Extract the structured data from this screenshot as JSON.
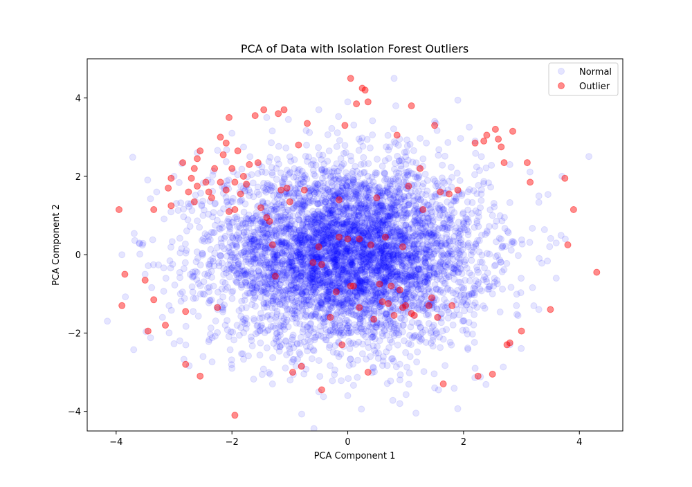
{
  "chart_data": {
    "type": "scatter",
    "title": "PCA of Data with Isolation Forest Outliers",
    "xlabel": "PCA Component 1",
    "ylabel": "PCA Component 2",
    "xlim": [
      -4.5,
      4.75
    ],
    "ylim": [
      -4.5,
      5.0
    ],
    "xticks": [
      -4,
      -2,
      0,
      2,
      4
    ],
    "yticks": [
      -4,
      -2,
      0,
      2,
      4
    ],
    "xtick_labels": [
      "−4",
      "−2",
      "0",
      "2",
      "4"
    ],
    "ytick_labels": [
      "−4",
      "−2",
      "0",
      "2",
      "4"
    ],
    "grid": false,
    "legend_position": "top-right",
    "series": [
      {
        "name": "Normal",
        "color": "#0000ff",
        "alpha": 0.1,
        "distribution": "dense 2D cloud centered near (0, 0), spread roughly x in [-4, 4], y in [-4, 4.5]",
        "points": [
          [
            -3.6,
            0.3
          ],
          [
            -3.5,
            -0.5
          ],
          [
            -3.3,
            1.6
          ],
          [
            -3.2,
            -1.6
          ],
          [
            -3.0,
            2.0
          ],
          [
            -2.9,
            -2.2
          ],
          [
            -2.6,
            2.6
          ],
          [
            -2.5,
            -2.6
          ],
          [
            -2.0,
            3.1
          ],
          [
            -2.0,
            -2.9
          ],
          [
            -1.4,
            3.5
          ],
          [
            -1.3,
            -3.3
          ],
          [
            -0.5,
            3.7
          ],
          [
            -0.5,
            -3.5
          ],
          [
            0.0,
            3.9
          ],
          [
            0.0,
            -3.6
          ],
          [
            0.8,
            4.5
          ],
          [
            0.9,
            -3.8
          ],
          [
            1.5,
            3.4
          ],
          [
            1.5,
            -3.4
          ],
          [
            2.2,
            2.9
          ],
          [
            2.2,
            -2.9
          ],
          [
            2.8,
            2.3
          ],
          [
            2.8,
            -2.3
          ],
          [
            3.3,
            1.5
          ],
          [
            3.3,
            -1.4
          ],
          [
            3.6,
            0.3
          ],
          [
            3.6,
            -0.6
          ],
          [
            3.7,
            2.0
          ],
          [
            -3.9,
            0.0
          ],
          [
            -1.0,
            1.0
          ],
          [
            1.0,
            -1.0
          ],
          [
            0.5,
            0.5
          ],
          [
            -0.5,
            -0.5
          ],
          [
            1.5,
            1.5
          ],
          [
            -1.5,
            -1.5
          ],
          [
            2.0,
            0.0
          ],
          [
            -2.0,
            0.0
          ],
          [
            0.0,
            2.0
          ],
          [
            0.0,
            -2.0
          ],
          [
            2.5,
            1.0
          ],
          [
            -2.5,
            -1.0
          ],
          [
            2.5,
            -1.0
          ],
          [
            -2.5,
            1.0
          ],
          [
            1.0,
            2.5
          ],
          [
            -1.0,
            -2.5
          ],
          [
            1.0,
            -2.5
          ],
          [
            -1.0,
            2.5
          ]
        ]
      },
      {
        "name": "Outlier",
        "color": "#ff0000",
        "alpha": 0.45,
        "points": [
          [
            -3.95,
            1.15
          ],
          [
            -3.9,
            -1.3
          ],
          [
            -3.85,
            -0.5
          ],
          [
            -3.5,
            -0.65
          ],
          [
            -3.45,
            -1.95
          ],
          [
            -3.35,
            -1.15
          ],
          [
            -3.35,
            1.15
          ],
          [
            -3.15,
            -1.8
          ],
          [
            -3.1,
            1.7
          ],
          [
            -3.05,
            1.95
          ],
          [
            -3.05,
            1.25
          ],
          [
            -2.85,
            2.35
          ],
          [
            -2.8,
            -1.45
          ],
          [
            -2.8,
            -2.8
          ],
          [
            -2.75,
            1.6
          ],
          [
            -2.7,
            1.95
          ],
          [
            -2.65,
            2.2
          ],
          [
            -2.65,
            1.35
          ],
          [
            -2.6,
            2.45
          ],
          [
            -2.6,
            1.75
          ],
          [
            -2.55,
            2.65
          ],
          [
            -2.55,
            -3.1
          ],
          [
            -2.45,
            1.85
          ],
          [
            -2.4,
            1.6
          ],
          [
            -2.35,
            1.45
          ],
          [
            -2.3,
            2.2
          ],
          [
            -2.25,
            -1.35
          ],
          [
            -2.2,
            1.85
          ],
          [
            -2.2,
            3.0
          ],
          [
            -2.15,
            2.55
          ],
          [
            -2.1,
            2.85
          ],
          [
            -2.1,
            1.65
          ],
          [
            -2.05,
            1.1
          ],
          [
            -2.05,
            3.5
          ],
          [
            -2.0,
            2.2
          ],
          [
            -1.95,
            1.85
          ],
          [
            -1.95,
            1.15
          ],
          [
            -1.9,
            2.65
          ],
          [
            -1.85,
            1.55
          ],
          [
            -1.8,
            2.0
          ],
          [
            -1.75,
            1.8
          ],
          [
            -1.7,
            2.3
          ],
          [
            -1.6,
            3.55
          ],
          [
            -1.55,
            2.35
          ],
          [
            -1.5,
            1.2
          ],
          [
            -1.45,
            3.7
          ],
          [
            -1.4,
            0.95
          ],
          [
            -1.35,
            0.85
          ],
          [
            -1.2,
            3.6
          ],
          [
            -1.15,
            1.65
          ],
          [
            -1.1,
            3.7
          ],
          [
            -1.05,
            1.7
          ],
          [
            -1.0,
            1.35
          ],
          [
            -0.95,
            -3.0
          ],
          [
            -0.85,
            2.8
          ],
          [
            -0.8,
            -2.85
          ],
          [
            -0.75,
            1.65
          ],
          [
            -0.7,
            3.35
          ],
          [
            -0.6,
            -0.2
          ],
          [
            -0.5,
            0.2
          ],
          [
            -0.45,
            -0.25
          ],
          [
            -0.45,
            -3.45
          ],
          [
            -0.3,
            -1.6
          ],
          [
            -0.2,
            -0.95
          ],
          [
            -0.15,
            1.4
          ],
          [
            -0.15,
            0.45
          ],
          [
            -0.1,
            -2.3
          ],
          [
            -0.05,
            3.3
          ],
          [
            0.0,
            0.4
          ],
          [
            0.05,
            -0.8
          ],
          [
            0.1,
            -0.8
          ],
          [
            0.15,
            3.85
          ],
          [
            0.2,
            0.4
          ],
          [
            0.2,
            -1.35
          ],
          [
            0.25,
            4.25
          ],
          [
            0.3,
            4.2
          ],
          [
            0.35,
            3.9
          ],
          [
            0.4,
            0.25
          ],
          [
            0.45,
            -1.65
          ],
          [
            0.5,
            1.45
          ],
          [
            0.55,
            -0.75
          ],
          [
            0.6,
            -1.2
          ],
          [
            0.65,
            0.45
          ],
          [
            0.7,
            -1.25
          ],
          [
            0.75,
            -0.8
          ],
          [
            0.8,
            -1.55
          ],
          [
            0.85,
            3.05
          ],
          [
            0.9,
            -0.9
          ],
          [
            0.95,
            -1.35
          ],
          [
            1.0,
            -1.3
          ],
          [
            1.05,
            1.75
          ],
          [
            1.1,
            -1.5
          ],
          [
            1.15,
            -1.55
          ],
          [
            1.25,
            2.2
          ],
          [
            1.3,
            1.15
          ],
          [
            1.4,
            -1.3
          ],
          [
            1.45,
            -1.1
          ],
          [
            1.5,
            3.3
          ],
          [
            1.55,
            -1.6
          ],
          [
            1.6,
            1.6
          ],
          [
            1.65,
            -3.3
          ],
          [
            1.75,
            1.55
          ],
          [
            1.8,
            -1.3
          ],
          [
            1.9,
            1.65
          ],
          [
            2.2,
            2.85
          ],
          [
            2.25,
            -3.1
          ],
          [
            2.35,
            2.9
          ],
          [
            2.4,
            3.05
          ],
          [
            2.5,
            -3.05
          ],
          [
            2.55,
            3.2
          ],
          [
            2.6,
            2.95
          ],
          [
            2.65,
            2.75
          ],
          [
            2.7,
            2.35
          ],
          [
            2.75,
            -2.3
          ],
          [
            2.8,
            -2.25
          ],
          [
            2.85,
            3.15
          ],
          [
            3.0,
            -1.95
          ],
          [
            3.1,
            2.35
          ],
          [
            3.15,
            1.85
          ],
          [
            3.5,
            -1.4
          ],
          [
            3.75,
            1.95
          ],
          [
            3.8,
            0.25
          ],
          [
            3.9,
            1.15
          ],
          [
            4.3,
            -0.45
          ],
          [
            -1.95,
            -4.1
          ],
          [
            0.05,
            4.5
          ],
          [
            0.35,
            -3.0
          ],
          [
            1.1,
            3.8
          ],
          [
            -1.3,
            0.25
          ],
          [
            -1.25,
            -0.55
          ],
          [
            0.95,
            0.2
          ]
        ]
      }
    ]
  }
}
